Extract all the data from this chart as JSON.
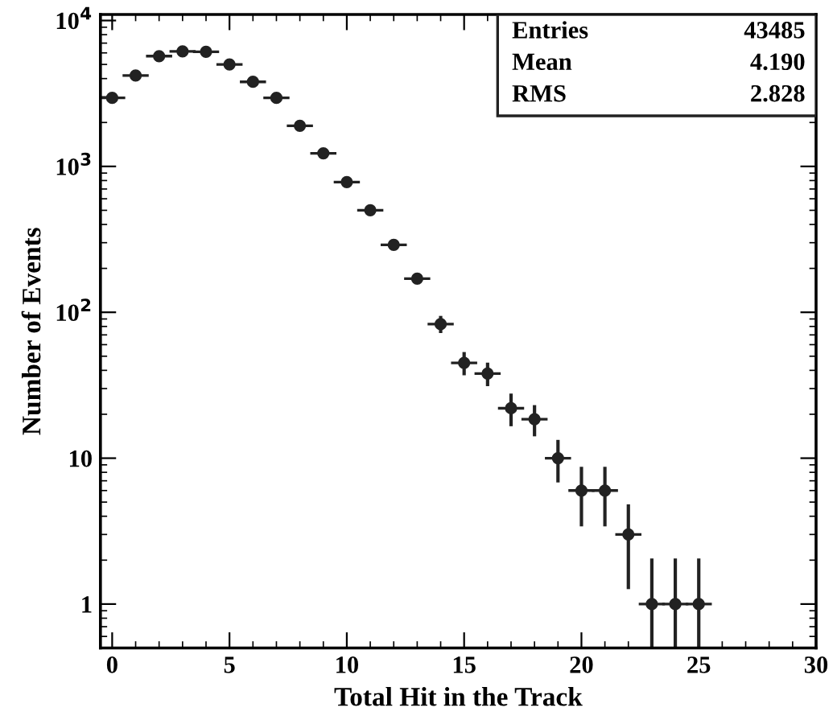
{
  "chart_data": {
    "type": "scatter",
    "xlabel": "Total Hit in the Track",
    "ylabel": "Number of Events",
    "x": [
      0,
      1,
      2,
      3,
      4,
      5,
      6,
      7,
      8,
      9,
      10,
      11,
      12,
      13,
      14,
      15,
      16,
      17,
      18,
      19,
      20,
      21,
      22,
      23,
      24,
      25
    ],
    "values": [
      2950,
      4200,
      5700,
      6150,
      6100,
      5000,
      3800,
      2950,
      1900,
      1230,
      780,
      500,
      290,
      170,
      83,
      45,
      38,
      22,
      18.5,
      10,
      6,
      6,
      3,
      1,
      1,
      1
    ],
    "errors": [
      null,
      null,
      null,
      null,
      null,
      null,
      null,
      null,
      null,
      null,
      null,
      null,
      null,
      null,
      9,
      7,
      6,
      5,
      4,
      3,
      2.5,
      2.5,
      1.7,
      [
        0.5,
        2
      ],
      [
        0.5,
        2
      ],
      [
        0.5,
        2
      ]
    ],
    "xerrors": [
      0.5,
      0.5,
      0.5,
      0.5,
      0.5,
      0.5,
      0.5,
      0.5,
      0.5,
      0.5,
      0.5,
      0.5,
      0.5,
      0.5,
      0.5,
      0.5,
      0.5,
      0.5,
      0.5,
      0.5,
      0.5,
      0.5,
      0.5,
      0.5,
      0.5,
      0.5
    ],
    "color": "#222222",
    "marker": "circle",
    "log": "y",
    "grid": false,
    "xlim": [
      -0.5,
      30
    ],
    "xticks": [
      0,
      5,
      10,
      15,
      20,
      25,
      30
    ],
    "ylim": [
      0.5,
      11000
    ],
    "yticks": [
      1,
      10,
      {
        "value": 100,
        "label": "10$^{2}$"
      },
      {
        "value": 1000,
        "label": "10$^{3}$"
      },
      {
        "value": 10000,
        "label": "10$^{4}$"
      }
    ],
    "annotations": [
      "Entries",
      "43485",
      "Mean",
      "4.190",
      "RMS",
      "2.828"
    ]
  }
}
